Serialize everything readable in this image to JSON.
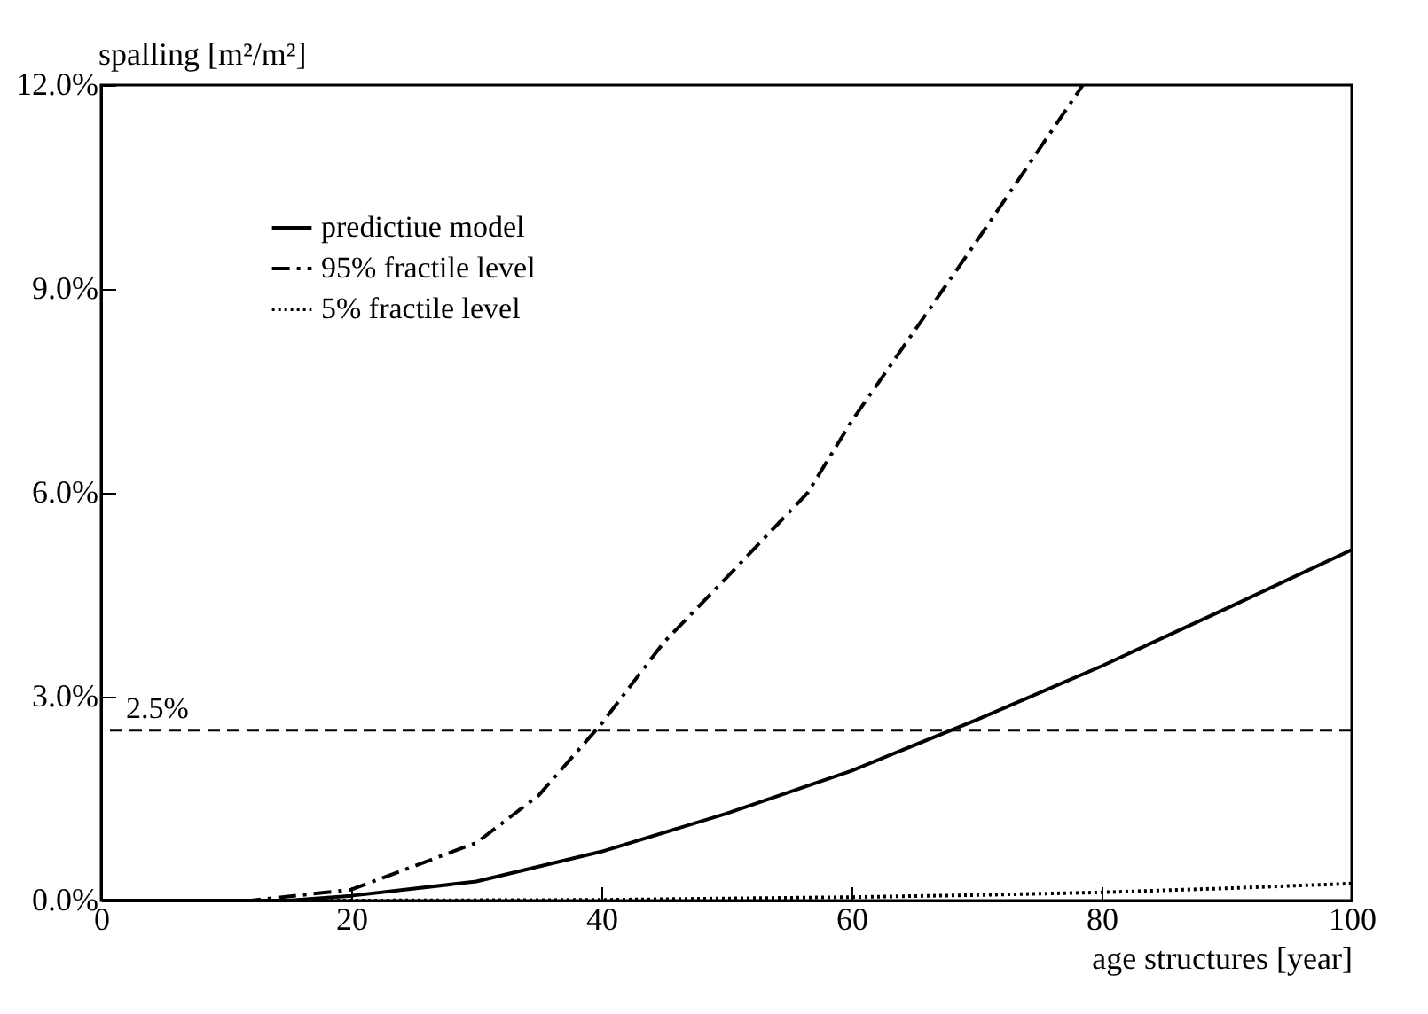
{
  "chart_data": {
    "type": "line",
    "ylabel": "spalling [m²/m²]",
    "xlabel": "age structures [year]",
    "xlim": [
      0,
      100
    ],
    "xticks": [
      0,
      20,
      40,
      60,
      80,
      100
    ],
    "ylim": [
      0,
      12
    ],
    "yticks": [
      {
        "value": 0,
        "label": "0.0%"
      },
      {
        "value": 3,
        "label": "3.0%"
      },
      {
        "value": 6,
        "label": "6.0%"
      },
      {
        "value": 9,
        "label": "9.0%"
      },
      {
        "value": 12,
        "label": "12.0%"
      }
    ],
    "grid": false,
    "legend": "top left",
    "marker": "none",
    "ref_lines": [
      {
        "axis": "y",
        "value": 2.5,
        "label": "2.5%",
        "line_style": "dashed",
        "color": "#000000"
      }
    ],
    "series": [
      {
        "name": "predictiue model",
        "color": "#000000",
        "line_style": "solid",
        "x": [
          0,
          10,
          15,
          20,
          30,
          40,
          50,
          60,
          70,
          80,
          90,
          100
        ],
        "values": [
          0,
          0,
          0,
          0.07,
          0.28,
          0.72,
          1.28,
          1.91,
          2.66,
          3.45,
          4.3,
          5.16
        ]
      },
      {
        "name": "95% fractile level",
        "color": "#000000",
        "line_style": "dashdot",
        "x": [
          0,
          10,
          12,
          20,
          30,
          35,
          40,
          45,
          50,
          56.5,
          60,
          70,
          78.5
        ],
        "values": [
          0,
          0,
          0,
          0.16,
          0.85,
          1.55,
          2.6,
          3.8,
          4.75,
          6,
          7.05,
          9.7,
          12
        ]
      },
      {
        "name": "5% fractile level",
        "color": "#000000",
        "line_style": "dotted",
        "x": [
          0,
          20,
          40,
          60,
          70,
          80,
          90,
          100
        ],
        "values": [
          0,
          0,
          0.01,
          0.05,
          0.08,
          0.12,
          0.18,
          0.25
        ]
      }
    ]
  }
}
